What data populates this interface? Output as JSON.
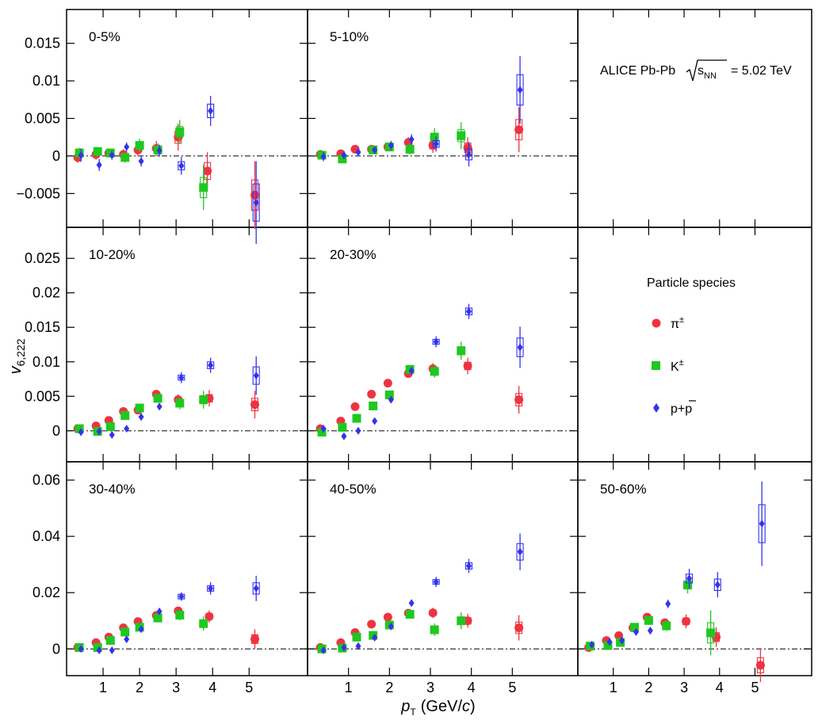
{
  "figure": {
    "ylabel_main": "v",
    "ylabel_sub": "6,222",
    "xlabel_main": "p",
    "xlabel_sub": "T",
    "xlabel_unit": "(GeV/",
    "xlabel_unit_c": "c",
    "xlabel_unit_close": ")",
    "collaboration_text": "ALICE Pb-Pb",
    "collaboration_energy_s": "s",
    "collaboration_energy_sub": "NN",
    "collaboration_energy_value": "= 5.02 TeV",
    "legend_title": "Particle species",
    "legend_pion": "π",
    "legend_pion_sup": "±",
    "legend_kaon": "K",
    "legend_kaon_sup": "±",
    "legend_proton_a": "p+",
    "legend_proton_b": "p",
    "colors": {
      "pion": "#ee3340",
      "kaon": "#1fc81f",
      "proton": "#3333ee"
    }
  },
  "chart_data": [
    {
      "type": "scatter",
      "title": "0-5%",
      "xlim": [
        0,
        6.6
      ],
      "ylim": [
        -0.0095,
        0.0195
      ],
      "yticks": [
        -0.005,
        0,
        0.005,
        0.01,
        0.015
      ],
      "yticklabels": [
        "−0.005",
        "0",
        "0.005",
        "0.01",
        "0.015"
      ],
      "xticks": [
        1,
        2,
        3,
        4,
        5
      ],
      "xticklabels": [],
      "grid": false,
      "series": [
        {
          "name": "π±",
          "x": [
            0.35,
            0.85,
            1.2,
            1.6,
            2.0,
            2.5,
            3.1,
            3.9,
            5.2
          ],
          "y": [
            -0.0002,
            0.0002,
            0.0004,
            0.0002,
            0.0008,
            0.001,
            0.0025,
            -0.002,
            -0.0052
          ],
          "err": [
            0.0007,
            0.0007,
            0.0006,
            0.0007,
            0.0008,
            0.001,
            0.0018,
            0.0025,
            0.0045
          ]
        },
        {
          "name": "K±",
          "x": [
            0.35,
            0.85,
            1.2,
            1.6,
            2.0,
            2.5,
            3.1,
            3.75
          ],
          "y": [
            0.0004,
            0.0006,
            0.0004,
            -0.0002,
            0.0014,
            0.0008,
            0.0032,
            -0.0042
          ],
          "err": [
            0.0007,
            0.0006,
            0.0006,
            0.0007,
            0.0009,
            0.0009,
            0.0016,
            0.003
          ]
        },
        {
          "name": "p+p̄",
          "x": [
            0.35,
            0.85,
            1.2,
            1.6,
            2.0,
            2.5,
            3.1,
            3.9,
            5.15
          ],
          "y": [
            0.0001,
            -0.0012,
            0.0001,
            0.0012,
            -0.0007,
            0.0007,
            -0.0013,
            0.006,
            -0.0062
          ],
          "err": [
            0.0009,
            0.0008,
            0.0006,
            0.0006,
            0.0007,
            0.0008,
            0.0012,
            0.002,
            0.0055
          ]
        }
      ]
    },
    {
      "type": "scatter",
      "title": "5-10%",
      "xlim": [
        0,
        6.6
      ],
      "ylim": [
        -0.0095,
        0.0195
      ],
      "xticks": [
        1,
        2,
        3,
        4,
        5
      ],
      "xticklabels": [],
      "grid": false,
      "series": [
        {
          "name": "π±",
          "x": [
            0.35,
            0.85,
            1.2,
            1.6,
            2.0,
            2.5,
            3.1,
            3.95,
            5.2
          ],
          "y": [
            0.0002,
            0.0003,
            0.0009,
            0.0009,
            0.0012,
            0.0018,
            0.0014,
            0.0011,
            0.0035
          ],
          "err": [
            0.0005,
            0.0005,
            0.0005,
            0.0005,
            0.0006,
            0.0007,
            0.001,
            0.0014,
            0.003
          ]
        },
        {
          "name": "K±",
          "x": [
            0.35,
            0.85,
            1.6,
            2.0,
            2.5,
            3.1,
            3.75
          ],
          "y": [
            0.0001,
            -0.0004,
            0.0008,
            0.0012,
            0.0009,
            0.0025,
            0.0027
          ],
          "err": [
            0.0005,
            0.0005,
            0.0005,
            0.0006,
            0.0007,
            0.0012,
            0.0018
          ]
        },
        {
          "name": "p+p̄",
          "x": [
            0.35,
            0.85,
            1.2,
            1.6,
            2.0,
            2.5,
            3.1,
            3.9,
            5.15
          ],
          "y": [
            -0.0001,
            0.0001,
            0.0005,
            0.0008,
            0.0014,
            0.0022,
            0.0016,
            0.0002,
            0.0088
          ],
          "err": [
            0.0006,
            0.0005,
            0.0005,
            0.0005,
            0.0006,
            0.0007,
            0.001,
            0.0016,
            0.0045
          ]
        }
      ]
    },
    null,
    {
      "type": "scatter",
      "title": "10-20%",
      "xlim": [
        0,
        6.6
      ],
      "ylim": [
        -0.0045,
        0.0295
      ],
      "yticks": [
        0,
        0.005,
        0.01,
        0.015,
        0.02,
        0.025
      ],
      "yticklabels": [
        "0",
        "0.005",
        "0.01",
        "0.015",
        "0.02",
        "0.025"
      ],
      "xticks": [
        1,
        2,
        3,
        4,
        5
      ],
      "xticklabels": [],
      "grid": false,
      "series": [
        {
          "name": "π±",
          "x": [
            0.35,
            0.85,
            1.2,
            1.6,
            2.0,
            2.5,
            3.1,
            3.95,
            5.2
          ],
          "y": [
            0.0003,
            0.0007,
            0.0015,
            0.0028,
            0.003,
            0.0053,
            0.0045,
            0.0047,
            0.0038
          ],
          "err": [
            0.0004,
            0.0004,
            0.0004,
            0.0004,
            0.0005,
            0.0005,
            0.0008,
            0.0012,
            0.002
          ]
        },
        {
          "name": "K±",
          "x": [
            0.35,
            0.85,
            1.2,
            1.6,
            2.0,
            2.5,
            3.1,
            3.75
          ],
          "y": [
            0.0003,
            -0.0001,
            0.0006,
            0.0022,
            0.0033,
            0.0047,
            0.004,
            0.0045
          ],
          "err": [
            0.0004,
            0.0004,
            0.0004,
            0.0005,
            0.0005,
            0.0006,
            0.0009,
            0.0013
          ]
        },
        {
          "name": "p+p̄",
          "x": [
            0.35,
            0.85,
            1.2,
            1.6,
            2.0,
            2.5,
            3.1,
            3.9,
            5.15
          ],
          "y": [
            -0.0002,
            -0.0001,
            -0.0006,
            0.0003,
            0.002,
            0.0035,
            0.0077,
            0.0095,
            0.008
          ],
          "err": [
            0.0005,
            0.0004,
            0.0004,
            0.0004,
            0.0005,
            0.0005,
            0.0008,
            0.0011,
            0.0028
          ]
        }
      ]
    },
    {
      "type": "scatter",
      "title": "20-30%",
      "xlim": [
        0,
        6.6
      ],
      "ylim": [
        -0.0045,
        0.0295
      ],
      "xticks": [
        1,
        2,
        3,
        4,
        5
      ],
      "xticklabels": [],
      "grid": false,
      "series": [
        {
          "name": "π±",
          "x": [
            0.35,
            0.85,
            1.2,
            1.6,
            2.0,
            2.5,
            3.1,
            3.95,
            5.2
          ],
          "y": [
            0.0003,
            0.0014,
            0.0035,
            0.0053,
            0.0069,
            0.0083,
            0.009,
            0.0094,
            0.0045
          ],
          "err": [
            0.0004,
            0.0004,
            0.0004,
            0.0004,
            0.0005,
            0.0005,
            0.0008,
            0.0012,
            0.002
          ]
        },
        {
          "name": "K±",
          "x": [
            0.35,
            0.85,
            1.2,
            1.6,
            2.0,
            2.5,
            3.1,
            3.75
          ],
          "y": [
            -0.0002,
            0.0005,
            0.0018,
            0.0036,
            0.0052,
            0.0089,
            0.0086,
            0.0116
          ],
          "err": [
            0.0004,
            0.0004,
            0.0004,
            0.0005,
            0.0005,
            0.0006,
            0.0009,
            0.0013
          ]
        },
        {
          "name": "p+p̄",
          "x": [
            0.35,
            0.85,
            1.2,
            1.6,
            2.0,
            2.5,
            3.1,
            3.9,
            5.15
          ],
          "y": [
            0.0003,
            -0.0008,
            0.0,
            0.0014,
            0.0045,
            0.0087,
            0.0129,
            0.0173,
            0.0121
          ],
          "err": [
            0.0005,
            0.0004,
            0.0004,
            0.0004,
            0.0005,
            0.0005,
            0.0008,
            0.0011,
            0.003
          ]
        }
      ]
    },
    null,
    {
      "type": "scatter",
      "title": "30-40%",
      "xlim": [
        0,
        6.6
      ],
      "ylim": [
        -0.0095,
        0.0665
      ],
      "yticks": [
        0,
        0.02,
        0.04,
        0.06
      ],
      "yticklabels": [
        "0",
        "0.02",
        "0.04",
        "0.06"
      ],
      "xticks": [
        1,
        2,
        3,
        4,
        5
      ],
      "xticklabels": [
        "1",
        "2",
        "3",
        "4",
        "5"
      ],
      "grid": false,
      "series": [
        {
          "name": "π±",
          "x": [
            0.35,
            0.85,
            1.2,
            1.6,
            2.0,
            2.5,
            3.1,
            3.95,
            5.2
          ],
          "y": [
            0.0005,
            0.0022,
            0.0042,
            0.0075,
            0.0097,
            0.0119,
            0.0135,
            0.0115,
            0.0035
          ],
          "err": [
            0.0006,
            0.0007,
            0.0007,
            0.0008,
            0.0009,
            0.001,
            0.0015,
            0.0022,
            0.0035
          ]
        },
        {
          "name": "K±",
          "x": [
            0.35,
            0.85,
            1.2,
            1.6,
            2.0,
            2.5,
            3.1,
            3.75
          ],
          "y": [
            0.0005,
            0.0005,
            0.003,
            0.006,
            0.0077,
            0.011,
            0.012,
            0.009
          ],
          "err": [
            0.0006,
            0.0007,
            0.0008,
            0.0009,
            0.001,
            0.0012,
            0.0018,
            0.0025
          ]
        },
        {
          "name": "p+p̄",
          "x": [
            0.35,
            0.85,
            1.2,
            1.6,
            2.0,
            2.5,
            3.1,
            3.9,
            5.15
          ],
          "y": [
            0.0,
            -0.0005,
            -0.0005,
            0.0034,
            0.007,
            0.0133,
            0.0186,
            0.0215,
            0.0215
          ],
          "err": [
            0.0008,
            0.0007,
            0.0007,
            0.0008,
            0.0009,
            0.001,
            0.0015,
            0.0022,
            0.0045
          ]
        }
      ]
    },
    {
      "type": "scatter",
      "title": "40-50%",
      "xlim": [
        0,
        6.6
      ],
      "ylim": [
        -0.0095,
        0.0665
      ],
      "xticks": [
        1,
        2,
        3,
        4,
        5
      ],
      "xticklabels": [
        "1",
        "2",
        "3",
        "4",
        "5"
      ],
      "grid": false,
      "series": [
        {
          "name": "π±",
          "x": [
            0.35,
            0.85,
            1.2,
            1.6,
            2.0,
            2.5,
            3.1,
            3.95,
            5.2
          ],
          "y": [
            0.0005,
            0.0022,
            0.0058,
            0.0088,
            0.0113,
            0.0127,
            0.0128,
            0.01,
            0.0075
          ],
          "err": [
            0.0007,
            0.0007,
            0.0008,
            0.0009,
            0.001,
            0.0012,
            0.0018,
            0.0025,
            0.0045
          ]
        },
        {
          "name": "K±",
          "x": [
            0.35,
            0.85,
            1.2,
            1.6,
            2.0,
            2.5,
            3.1,
            3.75
          ],
          "y": [
            0.0,
            0.0003,
            0.0042,
            0.0048,
            0.0085,
            0.0123,
            0.0068,
            0.01
          ],
          "err": [
            0.0007,
            0.0007,
            0.0009,
            0.001,
            0.0011,
            0.0014,
            0.0022,
            0.003
          ]
        },
        {
          "name": "p+p̄",
          "x": [
            0.35,
            0.85,
            1.2,
            1.6,
            2.0,
            2.5,
            3.1,
            3.9,
            5.15
          ],
          "y": [
            -0.0005,
            0.0005,
            0.001,
            0.004,
            0.008,
            0.0163,
            0.0238,
            0.0295,
            0.0345
          ],
          "err": [
            0.0008,
            0.0007,
            0.0008,
            0.0009,
            0.001,
            0.0012,
            0.0018,
            0.0025,
            0.0065
          ]
        }
      ]
    },
    {
      "type": "scatter",
      "title": "50-60%",
      "xlim": [
        0,
        6.6
      ],
      "ylim": [
        -0.0095,
        0.0665
      ],
      "xticks": [
        1,
        2,
        3,
        4,
        5
      ],
      "xticklabels": [
        "1",
        "2",
        "3",
        "4",
        "5"
      ],
      "grid": false,
      "series": [
        {
          "name": "π±",
          "x": [
            0.35,
            0.85,
            1.2,
            1.6,
            2.0,
            2.5,
            3.1,
            3.95,
            5.2
          ],
          "y": [
            0.0005,
            0.003,
            0.0047,
            0.0075,
            0.0113,
            0.0093,
            0.0098,
            0.0042,
            -0.0058
          ],
          "err": [
            0.0008,
            0.0009,
            0.001,
            0.0011,
            0.0013,
            0.0015,
            0.0025,
            0.0035,
            0.006
          ]
        },
        {
          "name": "K±",
          "x": [
            0.35,
            0.85,
            1.2,
            1.6,
            2.0,
            2.5,
            3.1,
            3.75
          ],
          "y": [
            0.001,
            0.0012,
            0.0023,
            0.0077,
            0.0101,
            0.0082,
            0.0227,
            0.0057
          ],
          "err": [
            0.0008,
            0.0009,
            0.0011,
            0.0013,
            0.0015,
            0.0018,
            0.003,
            0.008
          ]
        },
        {
          "name": "p+p̄",
          "x": [
            0.35,
            0.85,
            1.2,
            1.6,
            2.0,
            2.5,
            3.1,
            3.9,
            5.15
          ],
          "y": [
            0.0015,
            0.0025,
            0.003,
            0.006,
            0.0065,
            0.016,
            0.025,
            0.0228,
            0.0445
          ],
          "err": [
            0.001,
            0.0009,
            0.001,
            0.0011,
            0.0013,
            0.0015,
            0.0035,
            0.0045,
            0.015
          ]
        }
      ]
    }
  ]
}
